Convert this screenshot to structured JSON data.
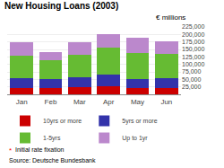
{
  "chart_data": {
    "type": "bar",
    "stacked": true,
    "title": "New Housing Loans (2003)",
    "ylabel": "€ millions",
    "categories": [
      "Jan",
      "Feb",
      "Mar",
      "Apr",
      "May",
      "Jun"
    ],
    "series": [
      {
        "name": "10yrs or more",
        "color": "#cc0000",
        "values": [
          22000,
          20000,
          23000,
          28000,
          20000,
          22000
        ]
      },
      {
        "name": "5yrs or more",
        "color": "#3333aa",
        "values": [
          33000,
          31000,
          34000,
          37000,
          30000,
          31000
        ]
      },
      {
        "name": "1-5yrs",
        "color": "#66bb33",
        "values": [
          75000,
          63000,
          75000,
          90000,
          88000,
          82000
        ]
      },
      {
        "name": "Up to 1yr",
        "color": "#bb88cc",
        "values": [
          45000,
          28000,
          42000,
          47000,
          50000,
          42000
        ]
      }
    ],
    "ylim": [
      0,
      225000
    ],
    "yticks": [
      {
        "value": 25000,
        "label": "25,000"
      },
      {
        "value": 50000,
        "label": "50,000"
      },
      {
        "value": 75000,
        "label": "75,000"
      },
      {
        "value": 100000,
        "label": "100,000"
      },
      {
        "value": 125000,
        "label": "125,000"
      },
      {
        "value": 150000,
        "label": "150,000"
      },
      {
        "value": 175000,
        "label": "175,000"
      },
      {
        "value": 200000,
        "label": "200,000"
      },
      {
        "value": 225000,
        "label": "225,000"
      }
    ],
    "grid": true,
    "legend": "bottom",
    "annotations": [
      {
        "text": "*",
        "color": "red"
      },
      {
        "text": "Initial rate fixation"
      },
      {
        "text": "Source: Deutsche Bundesbank"
      }
    ]
  }
}
